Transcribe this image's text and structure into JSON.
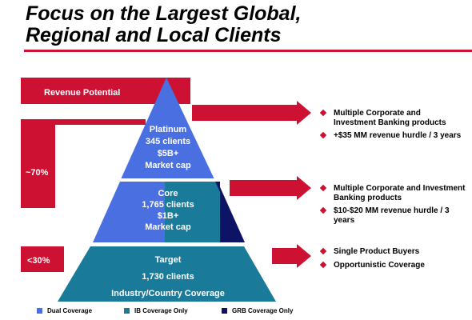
{
  "title": {
    "line1": "Focus on the Largest Global,",
    "line2": "Regional and Local Clients"
  },
  "labels": {
    "revenue_potential": "Revenue Potential",
    "pct_high": "~70%",
    "pct_low": "<30%"
  },
  "tiers": {
    "platinum": {
      "lines": [
        "Platinum",
        "345 clients",
        "$5B+",
        "Market cap"
      ]
    },
    "core": {
      "lines": [
        "Core",
        "1,765 clients",
        "$1B+",
        "Market cap"
      ]
    },
    "target": {
      "lines": [
        "Target",
        "1,730 clients",
        "Industry/Country Coverage"
      ]
    }
  },
  "bullets": {
    "platinum": [
      "Multiple Corporate and Investment Banking products",
      "+$35 MM revenue hurdle / 3 years"
    ],
    "core": [
      "Multiple Corporate and Investment Banking products",
      "$10-$20 MM revenue hurdle / 3 years"
    ],
    "target": [
      "Single Product Buyers",
      "Opportunistic Coverage"
    ]
  },
  "legend": [
    {
      "label": "Dual Coverage",
      "color": "#4a6fe0"
    },
    {
      "label": "IB Coverage Only",
      "color": "#1a7a9a"
    },
    {
      "label": "GRB Coverage Only",
      "color": "#0d1466"
    }
  ],
  "colors": {
    "accent": "#cc1133",
    "dual": "#4a6fe0",
    "ib": "#1a7a9a",
    "grb": "#0d1466"
  }
}
